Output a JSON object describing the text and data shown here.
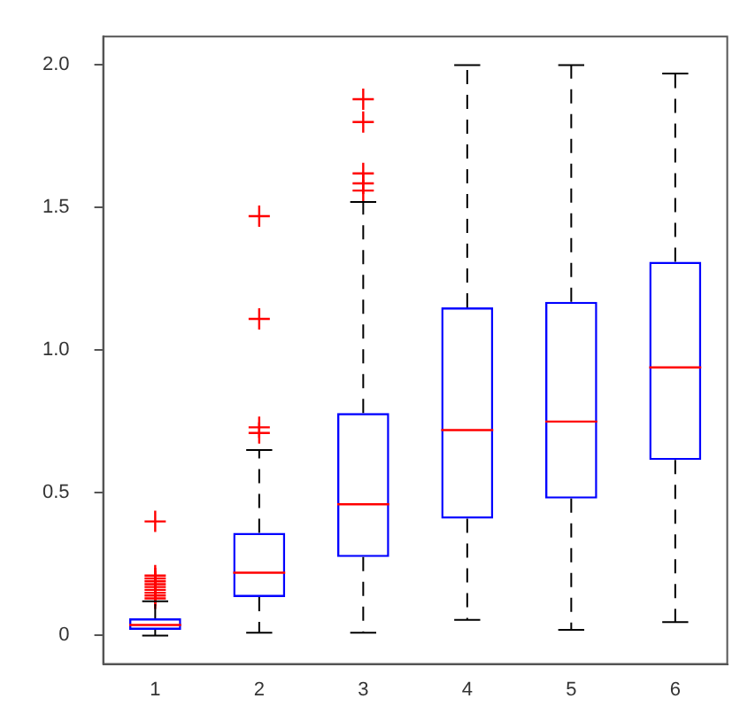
{
  "chart_data": {
    "type": "box",
    "categories": [
      "1",
      "2",
      "3",
      "4",
      "5",
      "6"
    ],
    "boxes": [
      {
        "low": 0,
        "q1": 0.02,
        "median": 0.037,
        "q3": 0.06,
        "high": 0.12,
        "outliers": [
          0.13,
          0.14,
          0.15,
          0.16,
          0.17,
          0.18,
          0.19,
          0.2,
          0.21,
          0.4
        ]
      },
      {
        "low": 0.01,
        "q1": 0.135,
        "median": 0.22,
        "q3": 0.36,
        "high": 0.65,
        "outliers": [
          0.71,
          0.73,
          1.11,
          1.47
        ]
      },
      {
        "low": 0.01,
        "q1": 0.275,
        "median": 0.46,
        "q3": 0.78,
        "high": 1.52,
        "outliers": [
          1.56,
          1.585,
          1.62,
          1.8,
          1.88
        ]
      },
      {
        "low": 0.055,
        "q1": 0.41,
        "median": 0.72,
        "q3": 1.15,
        "high": 2.0
      },
      {
        "low": 0.02,
        "q1": 0.48,
        "median": 0.75,
        "q3": 1.17,
        "high": 2.0
      },
      {
        "low": 0.047,
        "q1": 0.615,
        "median": 0.94,
        "q3": 1.31,
        "high": 1.97
      }
    ],
    "color": "#0000ff",
    "marker": "cross",
    "ylim": [
      -0.1,
      2.1
    ],
    "yticks": [
      0,
      0.5,
      {
        "value": 1,
        "label": "1.0"
      },
      1.5,
      {
        "value": 2,
        "label": "2.0"
      }
    ],
    "grid": false,
    "legend": false
  }
}
